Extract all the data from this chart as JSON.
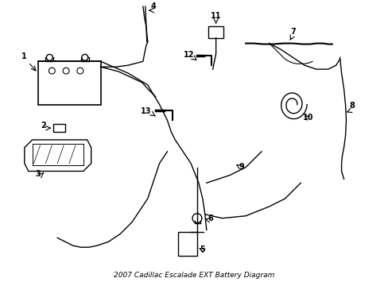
{
  "title": "2007 Cadillac Escalade EXT Battery Diagram",
  "bg_color": "#ffffff",
  "line_color": "#000000",
  "label_color": "#000000",
  "fig_width": 4.89,
  "fig_height": 3.6,
  "dpi": 100
}
